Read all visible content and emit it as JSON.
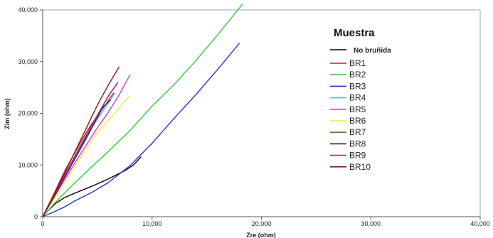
{
  "chart_data": {
    "type": "line",
    "title": "",
    "xlabel": "Zre (ohm)",
    "ylabel": "Zim (ohm)",
    "xlim": [
      0,
      40000
    ],
    "ylim": [
      0,
      40000
    ],
    "xticks": [
      "0",
      "10,000",
      "20,000",
      "30,000",
      "40,000"
    ],
    "yticks": [
      "0",
      "10,000",
      "20,000",
      "30,000",
      "40,000"
    ],
    "xtick_values": [
      0,
      10000,
      20000,
      30000,
      40000
    ],
    "ytick_values": [
      0,
      10000,
      20000,
      30000,
      40000
    ],
    "grid": false,
    "legend_position": "right",
    "legend_title": "Muestra",
    "series": [
      {
        "name": "No bruñida",
        "color": "#000000",
        "points": [
          [
            0,
            0
          ],
          [
            500,
            1200
          ],
          [
            1200,
            2600
          ],
          [
            2000,
            3700
          ],
          [
            3000,
            4600
          ],
          [
            4500,
            5900
          ],
          [
            6000,
            7300
          ],
          [
            7500,
            8900
          ],
          [
            8300,
            10000
          ],
          [
            9000,
            11600
          ]
        ]
      },
      {
        "name": "BR1",
        "color": "#c0232b",
        "points": [
          [
            0,
            0
          ],
          [
            1000,
            4300
          ],
          [
            2000,
            8800
          ],
          [
            3000,
            12600
          ],
          [
            4000,
            16400
          ],
          [
            5000,
            19600
          ],
          [
            5800,
            21800
          ],
          [
            6500,
            24000
          ]
        ]
      },
      {
        "name": "BR2",
        "color": "#33cc33",
        "points": [
          [
            0,
            0
          ],
          [
            1000,
            2400
          ],
          [
            2000,
            4600
          ],
          [
            4000,
            8700
          ],
          [
            6000,
            12600
          ],
          [
            8000,
            16700
          ],
          [
            10000,
            21400
          ],
          [
            12000,
            25500
          ],
          [
            14000,
            30200
          ],
          [
            16000,
            35200
          ],
          [
            18300,
            41200
          ]
        ]
      },
      {
        "name": "BR3",
        "color": "#2233cc",
        "points": [
          [
            0,
            0
          ],
          [
            1000,
            900
          ],
          [
            2000,
            1900
          ],
          [
            3000,
            3100
          ],
          [
            4500,
            4700
          ],
          [
            6000,
            6600
          ],
          [
            8000,
            9900
          ],
          [
            10000,
            14200
          ],
          [
            12000,
            19000
          ],
          [
            14000,
            23600
          ],
          [
            16000,
            28500
          ],
          [
            18000,
            33600
          ]
        ]
      },
      {
        "name": "BR4",
        "color": "#33cccc",
        "points": [
          [
            0,
            0
          ],
          [
            1000,
            3900
          ],
          [
            2000,
            7800
          ],
          [
            3000,
            11600
          ],
          [
            4000,
            15500
          ],
          [
            5000,
            18900
          ],
          [
            6000,
            22000
          ],
          [
            6600,
            23900
          ]
        ]
      },
      {
        "name": "BR5",
        "color": "#dd33dd",
        "points": [
          [
            0,
            0
          ],
          [
            1000,
            3600
          ],
          [
            2000,
            7200
          ],
          [
            3000,
            10600
          ],
          [
            4000,
            13900
          ],
          [
            5000,
            17200
          ],
          [
            6000,
            20200
          ],
          [
            7000,
            23600
          ],
          [
            8000,
            27500
          ]
        ]
      },
      {
        "name": "BR6",
        "color": "#eeee33",
        "points": [
          [
            0,
            0
          ],
          [
            1000,
            3300
          ],
          [
            2000,
            6700
          ],
          [
            3000,
            10000
          ],
          [
            4000,
            13100
          ],
          [
            5000,
            16200
          ],
          [
            6000,
            18700
          ],
          [
            7000,
            21000
          ],
          [
            7900,
            23300
          ]
        ]
      },
      {
        "name": "BR7",
        "color": "#7a6a3a",
        "points": [
          [
            0,
            0
          ],
          [
            1000,
            3900
          ],
          [
            2000,
            8000
          ],
          [
            3000,
            12000
          ],
          [
            4000,
            15900
          ],
          [
            5000,
            19600
          ],
          [
            6000,
            23400
          ],
          [
            6900,
            26000
          ]
        ]
      },
      {
        "name": "BR8",
        "color": "#1a2a7a",
        "points": [
          [
            0,
            0
          ],
          [
            1000,
            3700
          ],
          [
            2000,
            7600
          ],
          [
            3000,
            11400
          ],
          [
            4000,
            15200
          ],
          [
            5000,
            19200
          ],
          [
            5500,
            21200
          ],
          [
            6200,
            22600
          ]
        ]
      },
      {
        "name": "BR9",
        "color": "#aa2288",
        "points": [
          [
            0,
            0
          ],
          [
            1000,
            3900
          ],
          [
            2000,
            7900
          ],
          [
            3000,
            11700
          ],
          [
            4000,
            15700
          ],
          [
            5000,
            19600
          ],
          [
            6000,
            23300
          ],
          [
            6800,
            25800
          ]
        ]
      },
      {
        "name": "BR10",
        "color": "#8b1a1a",
        "points": [
          [
            0,
            0
          ],
          [
            1000,
            4100
          ],
          [
            2000,
            8400
          ],
          [
            3000,
            12800
          ],
          [
            4000,
            17200
          ],
          [
            5000,
            21600
          ],
          [
            6000,
            25500
          ],
          [
            7000,
            29000
          ]
        ]
      }
    ]
  }
}
